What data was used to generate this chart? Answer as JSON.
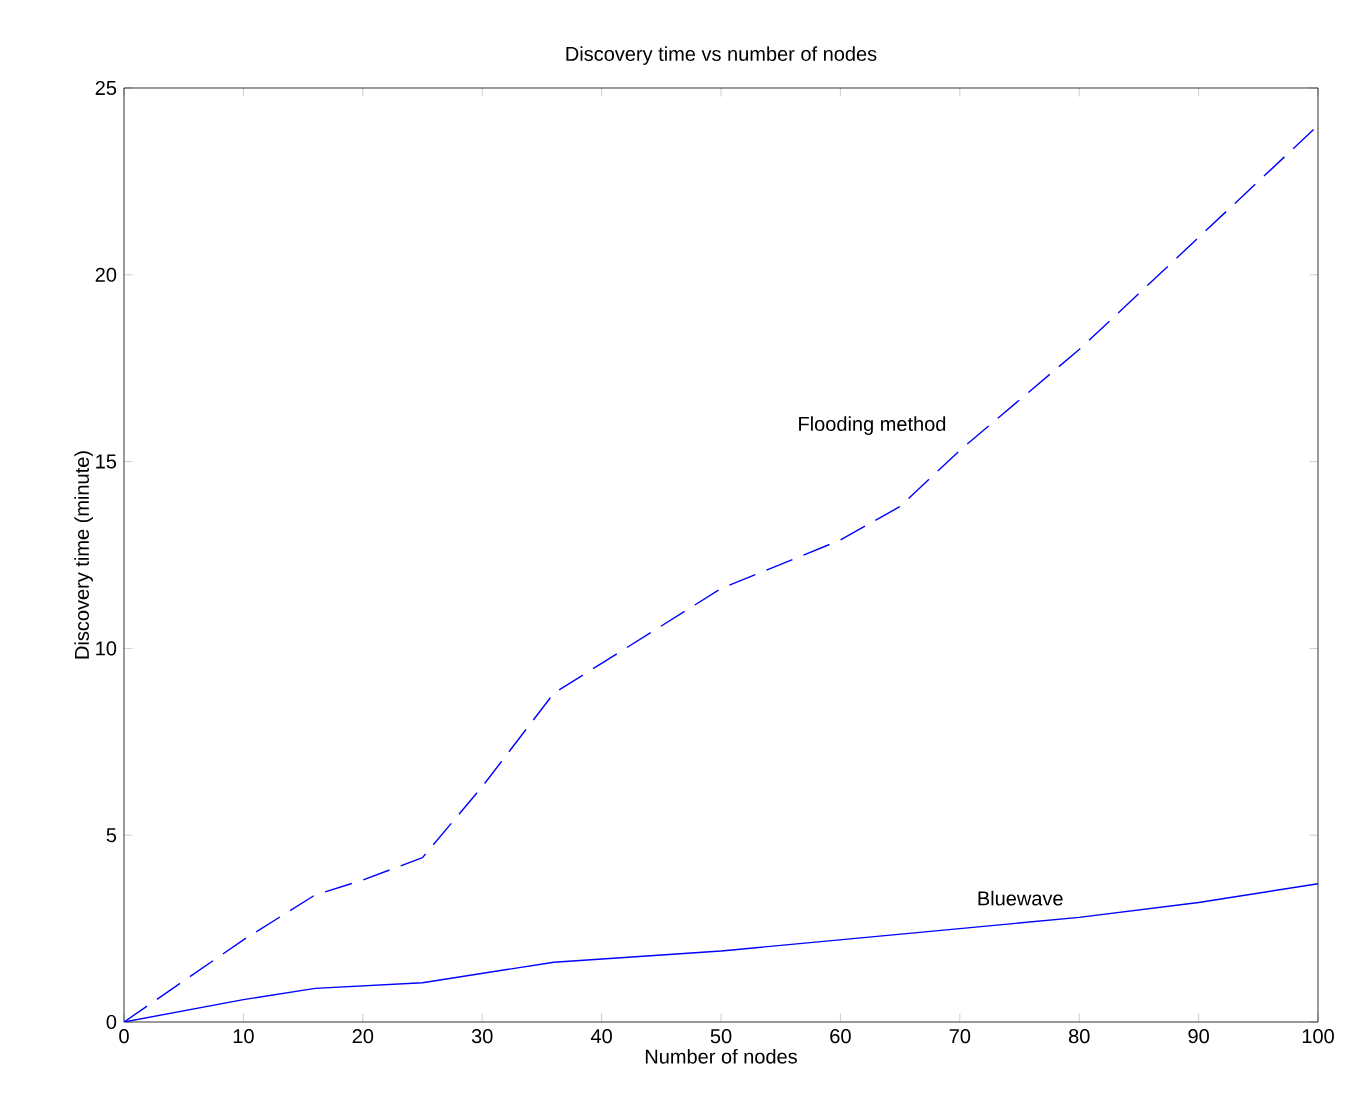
{
  "chart_data": {
    "type": "line",
    "title": "Discovery time vs number of nodes",
    "xlabel": "Number of nodes",
    "ylabel": "Discovery time (minute)",
    "xlim": [
      0,
      100
    ],
    "xticks": [
      0,
      10,
      20,
      30,
      40,
      50,
      60,
      70,
      80,
      90,
      100
    ],
    "ylim": [
      0,
      25
    ],
    "yticks": [
      0,
      5,
      10,
      15,
      20,
      25
    ],
    "grid": false,
    "legend": false,
    "marker": "none",
    "series": [
      {
        "name": "Flooding method",
        "color": "#0000ff",
        "line_style": "dashed",
        "x": [
          0,
          10,
          16,
          20,
          25,
          30,
          36,
          40,
          50,
          60,
          65,
          70,
          80,
          90,
          100
        ],
        "values": [
          0,
          2.2,
          3.4,
          3.8,
          4.4,
          6.3,
          8.8,
          9.6,
          11.6,
          12.9,
          13.8,
          15.3,
          18,
          21,
          24
        ]
      },
      {
        "name": "Bluewave",
        "color": "#0000ff",
        "line_style": "solid",
        "x": [
          0,
          10,
          16,
          25,
          36,
          50,
          70,
          80,
          90,
          100
        ],
        "values": [
          0,
          0.6,
          0.9,
          1.05,
          1.6,
          1.9,
          2.5,
          2.8,
          3.2,
          3.7
        ]
      }
    ]
  }
}
